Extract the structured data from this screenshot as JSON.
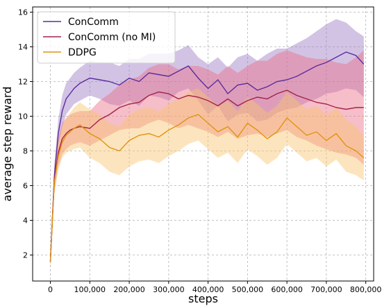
{
  "chart_data": {
    "type": "line",
    "xlabel": "steps",
    "ylabel": "average step reward",
    "xlim": [
      -45000,
      820000
    ],
    "ylim": [
      0.5,
      16.3
    ],
    "xticks": [
      0,
      100000,
      200000,
      300000,
      400000,
      500000,
      600000,
      700000,
      800000
    ],
    "xtick_labels": [
      "0",
      "100,000",
      "200,000",
      "300,000",
      "400,000",
      "500,000",
      "600,000",
      "700,000",
      "800,000"
    ],
    "yticks": [
      2,
      4,
      6,
      8,
      10,
      12,
      14,
      16
    ],
    "ytick_labels": [
      "2",
      "4",
      "6",
      "8",
      "10",
      "12",
      "14",
      "16"
    ],
    "grid": true,
    "legend_position": "top-left",
    "series": [
      {
        "name": "ConComm",
        "color": "#5b2c9e",
        "band_color": "#9b7bc4",
        "x": [
          0,
          10000,
          20000,
          30000,
          40000,
          50000,
          60000,
          75000,
          100000,
          125000,
          150000,
          175000,
          200000,
          225000,
          250000,
          275000,
          300000,
          325000,
          350000,
          375000,
          400000,
          425000,
          450000,
          475000,
          500000,
          525000,
          550000,
          575000,
          600000,
          625000,
          650000,
          675000,
          700000,
          725000,
          750000,
          775000,
          795000
        ],
        "y": [
          1.6,
          6.5,
          9.0,
          10.3,
          11.0,
          11.3,
          11.6,
          11.9,
          12.2,
          12.1,
          12.0,
          11.8,
          12.2,
          12.0,
          12.5,
          12.4,
          12.3,
          12.6,
          12.9,
          12.2,
          11.6,
          12.1,
          11.3,
          11.8,
          11.9,
          11.5,
          11.7,
          12.0,
          12.1,
          12.3,
          12.6,
          12.9,
          13.1,
          13.4,
          13.7,
          13.5,
          13.0
        ],
        "lower": [
          1.3,
          5.8,
          8.2,
          9.4,
          10.1,
          10.4,
          10.7,
          10.9,
          11.2,
          11.0,
          10.7,
          10.6,
          10.9,
          10.6,
          11.2,
          11.1,
          10.9,
          11.4,
          11.6,
          10.9,
          10.1,
          10.6,
          9.7,
          10.1,
          10.2,
          9.7,
          9.8,
          10.2,
          10.4,
          10.5,
          10.8,
          11.0,
          11.3,
          11.4,
          11.6,
          11.5,
          11.1
        ],
        "upper": [
          2.0,
          7.2,
          9.8,
          11.2,
          11.9,
          12.2,
          12.5,
          12.8,
          13.2,
          13.1,
          13.1,
          12.9,
          13.3,
          13.3,
          13.6,
          13.6,
          13.6,
          13.8,
          14.1,
          13.4,
          13.0,
          13.4,
          12.8,
          13.4,
          13.6,
          13.2,
          13.6,
          13.9,
          13.9,
          14.2,
          14.5,
          14.9,
          15.3,
          15.6,
          15.4,
          14.9,
          14.6
        ]
      },
      {
        "name": "ConComm (no MI)",
        "color": "#a3224a",
        "band_color": "#ec6e87",
        "x": [
          0,
          10000,
          20000,
          30000,
          40000,
          50000,
          60000,
          75000,
          100000,
          125000,
          150000,
          175000,
          200000,
          225000,
          250000,
          275000,
          300000,
          325000,
          350000,
          375000,
          400000,
          425000,
          450000,
          475000,
          500000,
          525000,
          550000,
          575000,
          600000,
          625000,
          650000,
          675000,
          700000,
          725000,
          750000,
          775000,
          795000
        ],
        "y": [
          1.6,
          6.3,
          7.9,
          8.7,
          9.0,
          9.2,
          9.3,
          9.4,
          9.3,
          9.8,
          10.1,
          10.5,
          10.7,
          10.8,
          11.2,
          11.4,
          11.3,
          11.0,
          11.2,
          11.1,
          10.9,
          10.6,
          11.0,
          10.6,
          10.9,
          11.1,
          11.0,
          11.3,
          11.5,
          11.2,
          11.0,
          10.8,
          10.7,
          10.5,
          10.4,
          10.5,
          10.5
        ],
        "lower": [
          1.3,
          5.6,
          7.1,
          7.8,
          8.1,
          8.3,
          8.4,
          8.5,
          8.3,
          8.6,
          8.9,
          9.2,
          9.3,
          9.3,
          9.6,
          9.8,
          9.6,
          9.3,
          9.5,
          9.3,
          9.1,
          8.8,
          9.1,
          8.7,
          8.9,
          9.0,
          8.8,
          9.0,
          9.2,
          8.8,
          8.6,
          8.3,
          8.1,
          7.9,
          7.8,
          7.6,
          7.2
        ],
        "upper": [
          2.0,
          7.0,
          8.7,
          9.6,
          9.9,
          10.1,
          10.2,
          10.3,
          10.3,
          10.9,
          11.3,
          11.8,
          12.1,
          12.3,
          12.8,
          13.0,
          13.0,
          12.7,
          12.9,
          12.9,
          12.7,
          12.4,
          12.9,
          12.5,
          12.9,
          13.2,
          13.2,
          13.6,
          13.8,
          13.6,
          13.4,
          13.3,
          13.3,
          13.1,
          13.0,
          13.4,
          13.8
        ]
      },
      {
        "name": "DDPG",
        "color": "#e0940c",
        "band_color": "#f8c56e",
        "x": [
          0,
          10000,
          20000,
          30000,
          40000,
          50000,
          60000,
          75000,
          100000,
          125000,
          150000,
          175000,
          200000,
          225000,
          250000,
          275000,
          300000,
          325000,
          350000,
          375000,
          400000,
          425000,
          450000,
          475000,
          500000,
          525000,
          550000,
          575000,
          600000,
          625000,
          650000,
          675000,
          700000,
          725000,
          750000,
          775000,
          795000
        ],
        "y": [
          1.6,
          6.2,
          7.7,
          8.5,
          8.9,
          9.1,
          9.3,
          9.5,
          9.0,
          8.7,
          8.2,
          8.0,
          8.6,
          8.9,
          9.0,
          8.8,
          9.2,
          9.5,
          9.9,
          10.1,
          9.6,
          9.1,
          9.4,
          8.8,
          9.6,
          9.2,
          8.7,
          9.1,
          9.9,
          9.4,
          8.9,
          9.1,
          8.6,
          9.0,
          8.3,
          8.0,
          7.6
        ],
        "lower": [
          1.3,
          5.5,
          6.9,
          7.6,
          7.9,
          8.0,
          8.1,
          8.2,
          7.6,
          7.3,
          6.8,
          6.6,
          7.1,
          7.4,
          7.5,
          7.3,
          7.7,
          8.0,
          8.4,
          8.6,
          8.1,
          7.6,
          7.9,
          7.3,
          8.1,
          7.7,
          7.2,
          7.6,
          8.4,
          7.9,
          7.4,
          7.6,
          7.1,
          7.5,
          6.8,
          6.6,
          6.3
        ],
        "upper": [
          2.0,
          6.9,
          8.5,
          9.4,
          9.9,
          10.2,
          10.5,
          10.8,
          10.4,
          10.1,
          9.6,
          9.4,
          10.1,
          10.4,
          10.5,
          10.3,
          10.7,
          11.0,
          11.4,
          11.6,
          11.1,
          10.6,
          10.9,
          10.3,
          11.1,
          10.7,
          10.2,
          10.6,
          11.4,
          10.9,
          10.4,
          10.6,
          10.1,
          10.5,
          9.8,
          9.4,
          8.9
        ]
      }
    ]
  }
}
